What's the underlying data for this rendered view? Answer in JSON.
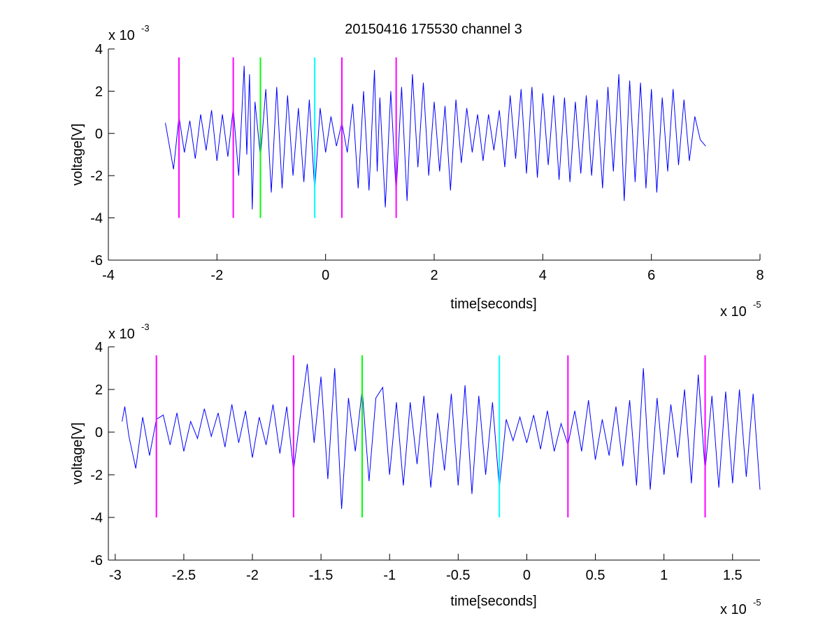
{
  "figure": {
    "title": "20150416 175530 channel 3"
  },
  "chart_data": [
    {
      "type": "line",
      "title": "20150416 175530 channel 3",
      "xlabel": "time[seconds]",
      "ylabel": "voltage[V]",
      "x_multiplier": "x 10",
      "x_exponent": "-5",
      "y_multiplier": "x 10",
      "y_exponent": "-3",
      "xlim": [
        -4,
        8
      ],
      "ylim": [
        -6,
        4
      ],
      "xticks": [
        -4,
        -2,
        0,
        2,
        4,
        6,
        8
      ],
      "xtick_labels": [
        "-4",
        "-2",
        "0",
        "2",
        "4",
        "6",
        "8"
      ],
      "yticks": [
        -6,
        -4,
        -2,
        0,
        2,
        4
      ],
      "ytick_labels": [
        "-6",
        "-4",
        "-2",
        "0",
        "2",
        "4"
      ],
      "grid": false,
      "series": [
        {
          "color": "#0000ff",
          "x": [
            -2.95,
            -2.8,
            -2.7,
            -2.6,
            -2.5,
            -2.4,
            -2.3,
            -2.2,
            -2.1,
            -2.0,
            -1.9,
            -1.8,
            -1.7,
            -1.6,
            -1.5,
            -1.45,
            -1.4,
            -1.35,
            -1.3,
            -1.2,
            -1.1,
            -1.0,
            -0.9,
            -0.8,
            -0.7,
            -0.6,
            -0.5,
            -0.4,
            -0.3,
            -0.2,
            -0.1,
            0.0,
            0.1,
            0.2,
            0.3,
            0.4,
            0.5,
            0.6,
            0.7,
            0.8,
            0.9,
            0.95,
            1.0,
            1.1,
            1.2,
            1.3,
            1.4,
            1.5,
            1.6,
            1.7,
            1.8,
            1.9,
            2.0,
            2.1,
            2.2,
            2.3,
            2.4,
            2.5,
            2.6,
            2.7,
            2.8,
            2.9,
            3.0,
            3.1,
            3.2,
            3.3,
            3.4,
            3.5,
            3.6,
            3.7,
            3.8,
            3.9,
            4.0,
            4.1,
            4.2,
            4.3,
            4.4,
            4.5,
            4.6,
            4.7,
            4.8,
            4.9,
            5.0,
            5.1,
            5.2,
            5.3,
            5.4,
            5.5,
            5.6,
            5.7,
            5.8,
            5.9,
            6.0,
            6.1,
            6.2,
            6.3,
            6.4,
            6.5,
            6.6,
            6.7,
            6.8,
            6.9,
            7.0
          ],
          "values": [
            0.5,
            -1.7,
            0.8,
            -0.9,
            0.6,
            -1.2,
            0.9,
            -0.8,
            1.1,
            -1.3,
            0.9,
            -1.1,
            1.2,
            -2.0,
            3.2,
            -1.0,
            2.8,
            -3.6,
            1.5,
            -1.1,
            2.1,
            -2.8,
            2.2,
            -2.6,
            1.8,
            -2.0,
            1.2,
            -2.3,
            1.6,
            -2.7,
            1.2,
            -0.9,
            0.8,
            -0.6,
            0.5,
            -0.9,
            1.4,
            -2.6,
            2.0,
            -2.7,
            3.0,
            -1.8,
            1.7,
            -3.5,
            2.0,
            -2.8,
            2.2,
            -3.2,
            2.8,
            -1.6,
            2.4,
            -2.0,
            1.5,
            -1.8,
            1.3,
            -2.7,
            1.6,
            -1.4,
            1.2,
            -0.9,
            0.9,
            -1.3,
            0.9,
            -0.8,
            1.1,
            -1.6,
            1.8,
            -1.2,
            2.1,
            -1.9,
            2.2,
            -2.1,
            1.9,
            -1.5,
            1.8,
            -2.2,
            1.7,
            -2.3,
            1.5,
            -1.9,
            1.8,
            -2.0,
            1.6,
            -2.6,
            2.2,
            -1.8,
            2.8,
            -3.2,
            2.5,
            -2.3,
            2.4,
            -2.6,
            2.1,
            -2.8,
            1.7,
            -1.8,
            2.1,
            -1.5,
            1.6,
            -1.3,
            0.8,
            -0.3,
            -0.6
          ]
        }
      ],
      "markers": [
        {
          "x": -2.7,
          "color": "#ff00ff",
          "y_from": -4,
          "y_to": 3.6
        },
        {
          "x": -1.7,
          "color": "#ff00ff",
          "y_from": -4,
          "y_to": 3.6
        },
        {
          "x": -1.2,
          "color": "#00ff00",
          "y_from": -4,
          "y_to": 3.6
        },
        {
          "x": -0.2,
          "color": "#00ffff",
          "y_from": -4,
          "y_to": 3.6
        },
        {
          "x": 0.3,
          "color": "#ff00ff",
          "y_from": -4,
          "y_to": 3.6
        },
        {
          "x": 1.3,
          "color": "#ff00ff",
          "y_from": -4,
          "y_to": 3.6
        }
      ]
    },
    {
      "type": "line",
      "title": "",
      "xlabel": "time[seconds]",
      "ylabel": "voltage[V]",
      "x_multiplier": "x 10",
      "x_exponent": "-5",
      "y_multiplier": "x 10",
      "y_exponent": "-3",
      "xlim": [
        -3.05,
        1.7
      ],
      "ylim": [
        -6,
        4
      ],
      "xticks": [
        -3,
        -2.5,
        -2,
        -1.5,
        -1,
        -0.5,
        0,
        0.5,
        1,
        1.5
      ],
      "xtick_labels": [
        "-3",
        "-2.5",
        "-2",
        "-1.5",
        "-1",
        "-0.5",
        "0",
        "0.5",
        "1",
        "1.5"
      ],
      "yticks": [
        -6,
        -4,
        -2,
        0,
        2,
        4
      ],
      "ytick_labels": [
        "-6",
        "-4",
        "-2",
        "0",
        "2",
        "4"
      ],
      "grid": false,
      "series": [
        {
          "color": "#0000ff",
          "x": [
            -2.95,
            -2.93,
            -2.9,
            -2.85,
            -2.8,
            -2.75,
            -2.7,
            -2.65,
            -2.6,
            -2.55,
            -2.5,
            -2.45,
            -2.4,
            -2.35,
            -2.3,
            -2.25,
            -2.2,
            -2.15,
            -2.1,
            -2.05,
            -2.0,
            -1.95,
            -1.9,
            -1.85,
            -1.8,
            -1.75,
            -1.7,
            -1.65,
            -1.6,
            -1.55,
            -1.5,
            -1.45,
            -1.4,
            -1.35,
            -1.3,
            -1.25,
            -1.2,
            -1.15,
            -1.1,
            -1.05,
            -1.0,
            -0.95,
            -0.9,
            -0.85,
            -0.8,
            -0.75,
            -0.7,
            -0.65,
            -0.6,
            -0.55,
            -0.5,
            -0.45,
            -0.4,
            -0.35,
            -0.3,
            -0.25,
            -0.2,
            -0.15,
            -0.1,
            -0.05,
            0.0,
            0.05,
            0.1,
            0.15,
            0.2,
            0.25,
            0.3,
            0.35,
            0.4,
            0.45,
            0.5,
            0.55,
            0.6,
            0.65,
            0.7,
            0.75,
            0.8,
            0.85,
            0.9,
            0.95,
            1.0,
            1.05,
            1.1,
            1.15,
            1.2,
            1.25,
            1.3,
            1.35,
            1.4,
            1.45,
            1.5,
            1.55,
            1.6,
            1.65,
            1.7
          ],
          "values": [
            0.5,
            1.2,
            -0.2,
            -1.7,
            0.7,
            -1.1,
            0.6,
            0.8,
            -0.6,
            0.9,
            -0.9,
            0.5,
            -0.3,
            1.1,
            -0.2,
            0.9,
            -0.7,
            1.3,
            -0.5,
            1.0,
            -1.2,
            0.7,
            -0.6,
            1.3,
            -1.0,
            1.2,
            -1.8,
            0.8,
            3.2,
            -0.5,
            2.6,
            -2.2,
            3.0,
            -3.6,
            1.6,
            -0.9,
            2.0,
            -2.3,
            1.6,
            2.1,
            -2.0,
            1.4,
            -2.5,
            1.4,
            -1.5,
            1.7,
            -2.6,
            0.9,
            -1.8,
            1.8,
            -2.5,
            2.2,
            -2.9,
            1.7,
            -2.0,
            1.4,
            -2.6,
            0.6,
            -0.4,
            0.7,
            -0.5,
            0.8,
            -0.8,
            1.0,
            -0.9,
            0.4,
            -0.6,
            1.0,
            -0.9,
            1.5,
            -1.3,
            0.6,
            -1.1,
            1.2,
            -1.6,
            1.5,
            -2.5,
            3.0,
            -2.7,
            1.6,
            -2.0,
            1.3,
            -1.2,
            2.0,
            -2.4,
            2.7,
            -1.8,
            1.7,
            -2.6,
            1.9,
            -2.4,
            2.0,
            -2.1,
            1.8,
            -2.7
          ]
        }
      ],
      "markers": [
        {
          "x": -2.7,
          "color": "#ff00ff",
          "y_from": -4,
          "y_to": 3.6
        },
        {
          "x": -1.7,
          "color": "#ff00ff",
          "y_from": -4,
          "y_to": 3.6
        },
        {
          "x": -1.2,
          "color": "#00ff00",
          "y_from": -4,
          "y_to": 3.6
        },
        {
          "x": -0.2,
          "color": "#00ffff",
          "y_from": -4,
          "y_to": 3.6
        },
        {
          "x": 0.3,
          "color": "#ff00ff",
          "y_from": -4,
          "y_to": 3.6
        },
        {
          "x": 1.3,
          "color": "#ff00ff",
          "y_from": -4,
          "y_to": 3.6
        }
      ]
    }
  ]
}
